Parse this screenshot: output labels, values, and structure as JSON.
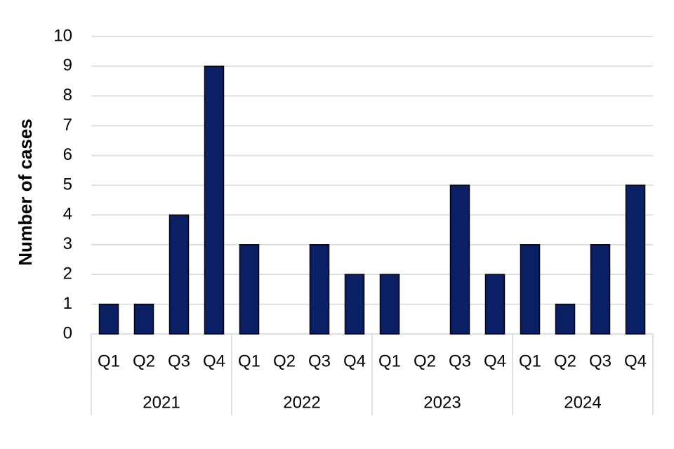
{
  "chart_data": {
    "type": "bar",
    "y_label": "Number of cases",
    "color": "#0a1f64",
    "ylim": [
      0,
      10
    ],
    "yticks": [
      0,
      1,
      2,
      3,
      4,
      5,
      6,
      7,
      8,
      9,
      10
    ],
    "grid": true,
    "groups": [
      {
        "name": "2021",
        "categories": [
          "Q1",
          "Q2",
          "Q3",
          "Q4"
        ],
        "values": [
          1,
          1,
          4,
          9
        ]
      },
      {
        "name": "2022",
        "categories": [
          "Q1",
          "Q2",
          "Q3",
          "Q4"
        ],
        "values": [
          3,
          0,
          3,
          2
        ]
      },
      {
        "name": "2023",
        "categories": [
          "Q1",
          "Q2",
          "Q3",
          "Q4"
        ],
        "values": [
          2,
          0,
          5,
          2
        ]
      },
      {
        "name": "2024",
        "categories": [
          "Q1",
          "Q2",
          "Q3",
          "Q4"
        ],
        "values": [
          3,
          1,
          3,
          5
        ]
      }
    ]
  }
}
